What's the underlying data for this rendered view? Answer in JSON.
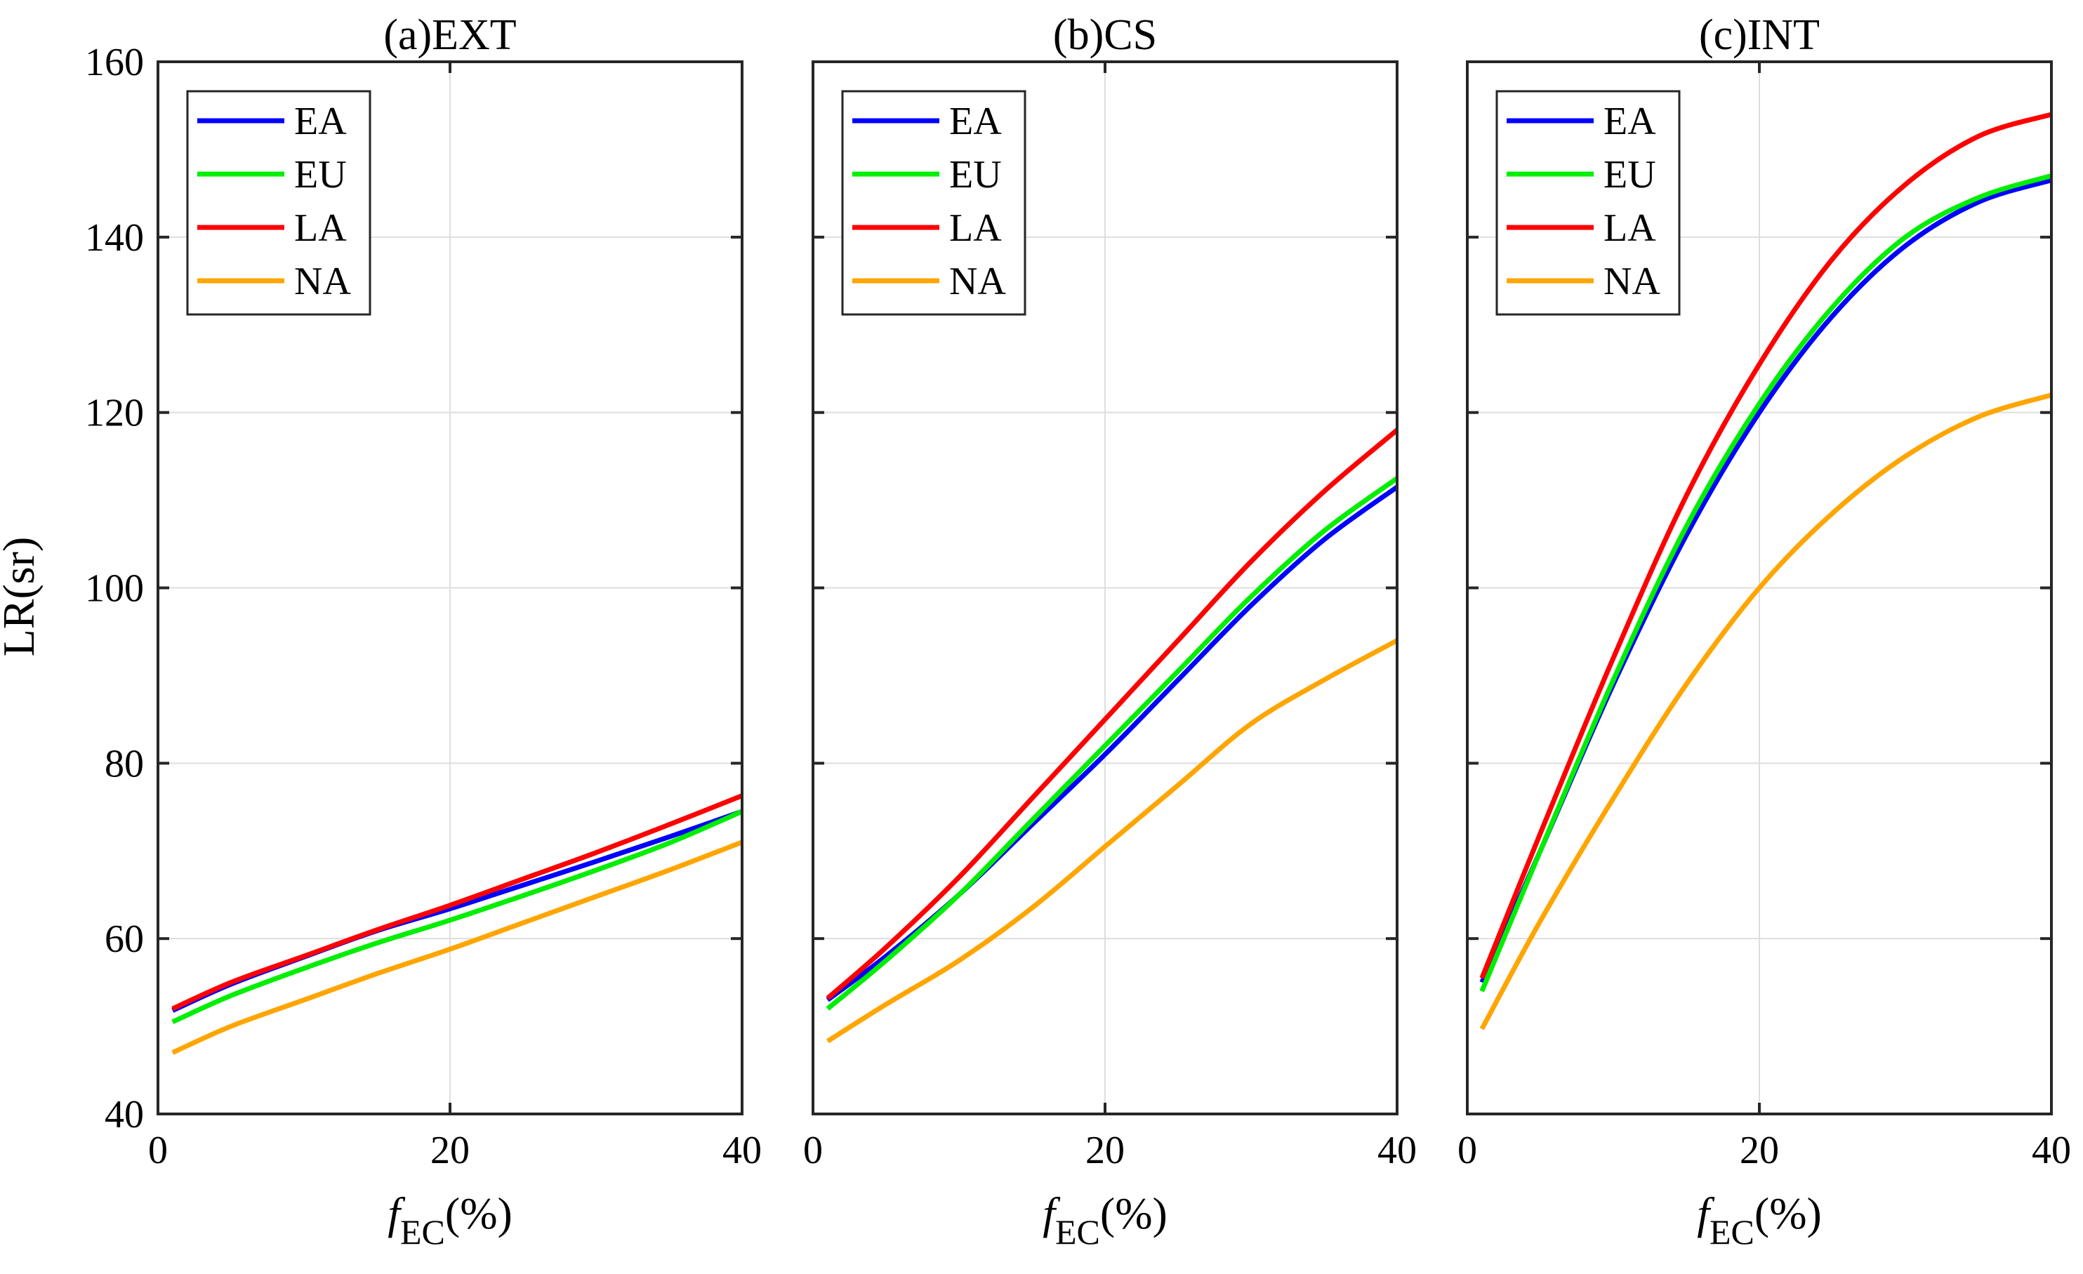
{
  "figure": {
    "ylabel": "LR(sr)",
    "xlabel_main": "f",
    "xlabel_sub": "EC",
    "xlabel_unit": "(%)"
  },
  "chart_data": [
    {
      "type": "line",
      "title": "(a)EXT",
      "xlabel": "fEC(%)",
      "ylabel": "LR(sr)",
      "xlim": [
        0,
        40
      ],
      "ylim": [
        40,
        160
      ],
      "xticks": [
        0,
        20,
        40
      ],
      "yticks": [
        40,
        60,
        80,
        100,
        120,
        140,
        160
      ],
      "grid": true,
      "legend_position": "top-left",
      "x": [
        1,
        5,
        10,
        15,
        20,
        25,
        30,
        35,
        40
      ],
      "series": [
        {
          "name": "EA",
          "color": "#0000ff",
          "values": [
            51.8,
            54.8,
            57.9,
            60.9,
            63.4,
            66.1,
            68.8,
            71.6,
            74.5
          ]
        },
        {
          "name": "EU",
          "color": "#00ee00",
          "values": [
            50.5,
            53.5,
            56.6,
            59.5,
            62.1,
            64.9,
            67.8,
            70.9,
            74.5
          ]
        },
        {
          "name": "LA",
          "color": "#ff0000",
          "values": [
            52.0,
            55.0,
            58.0,
            61.0,
            63.8,
            66.8,
            69.8,
            73.0,
            76.3
          ]
        },
        {
          "name": "NA",
          "color": "#ffa500",
          "values": [
            47.0,
            50.0,
            53.0,
            56.0,
            58.8,
            61.8,
            64.8,
            67.8,
            71.0
          ]
        }
      ]
    },
    {
      "type": "line",
      "title": "(b)CS",
      "xlabel": "fEC(%)",
      "ylabel": "LR(sr)",
      "xlim": [
        0,
        40
      ],
      "ylim": [
        40,
        160
      ],
      "xticks": [
        0,
        20,
        40
      ],
      "yticks": [
        40,
        60,
        80,
        100,
        120,
        140,
        160
      ],
      "grid": true,
      "legend_position": "top-left",
      "x": [
        1,
        5,
        10,
        15,
        20,
        25,
        30,
        35,
        40
      ],
      "series": [
        {
          "name": "EA",
          "color": "#0000ff",
          "values": [
            53.0,
            58.0,
            65.0,
            73.0,
            81.0,
            89.5,
            98.0,
            105.5,
            111.5
          ]
        },
        {
          "name": "EU",
          "color": "#00ee00",
          "values": [
            52.0,
            57.5,
            65.0,
            73.5,
            82.0,
            90.5,
            99.0,
            106.5,
            112.5
          ]
        },
        {
          "name": "LA",
          "color": "#ff0000",
          "values": [
            53.2,
            59.0,
            67.0,
            76.0,
            85.0,
            94.0,
            103.0,
            111.0,
            118.0
          ]
        },
        {
          "name": "NA",
          "color": "#ffa500",
          "values": [
            48.3,
            52.5,
            57.5,
            63.5,
            70.5,
            77.5,
            84.5,
            89.5,
            94.0
          ]
        }
      ]
    },
    {
      "type": "line",
      "title": "(c)INT",
      "xlabel": "fEC(%)",
      "ylabel": "LR(sr)",
      "xlim": [
        0,
        40
      ],
      "ylim": [
        40,
        160
      ],
      "xticks": [
        0,
        20,
        40
      ],
      "yticks": [
        40,
        60,
        80,
        100,
        120,
        140,
        160
      ],
      "grid": true,
      "legend_position": "top-left",
      "x": [
        1,
        5,
        10,
        15,
        20,
        25,
        30,
        35,
        40
      ],
      "series": [
        {
          "name": "EA",
          "color": "#0000ff",
          "values": [
            55.0,
            70.0,
            89.0,
            106.0,
            120.0,
            131.0,
            139.0,
            144.0,
            146.5
          ]
        },
        {
          "name": "EU",
          "color": "#00ee00",
          "values": [
            54.0,
            70.0,
            89.5,
            107.0,
            121.0,
            132.0,
            140.0,
            144.5,
            147.0
          ]
        },
        {
          "name": "LA",
          "color": "#ff0000",
          "values": [
            55.5,
            72.0,
            92.0,
            110.5,
            125.5,
            137.5,
            146.0,
            151.5,
            154.0
          ]
        },
        {
          "name": "NA",
          "color": "#ffa500",
          "values": [
            49.7,
            62.0,
            76.0,
            89.0,
            100.0,
            108.5,
            115.0,
            119.5,
            122.0
          ]
        }
      ]
    }
  ]
}
